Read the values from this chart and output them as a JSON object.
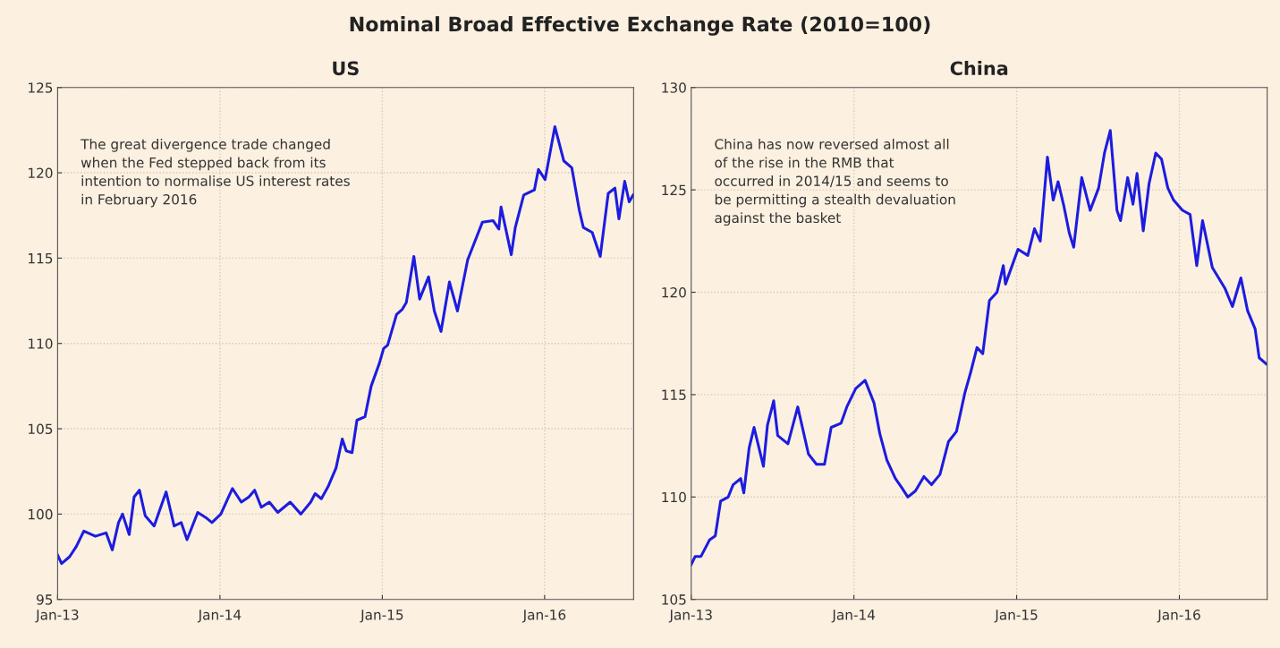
{
  "chart_data": [
    {
      "type": "line",
      "title": "US",
      "x": [
        "2013-01-01",
        "2013-01-10",
        "2013-01-28",
        "2013-02-12",
        "2013-03-01",
        "2013-03-27",
        "2013-04-20",
        "2013-05-04",
        "2013-05-18",
        "2013-05-27",
        "2013-06-11",
        "2013-06-22",
        "2013-07-04",
        "2013-07-17",
        "2013-08-06",
        "2013-09-02",
        "2013-09-20",
        "2013-10-06",
        "2013-10-19",
        "2013-11-12",
        "2013-11-30",
        "2013-12-14",
        "2014-01-03",
        "2014-01-29",
        "2014-02-18",
        "2014-03-07",
        "2014-03-20",
        "2014-04-04",
        "2014-04-22",
        "2014-05-11",
        "2014-06-08",
        "2014-07-02",
        "2014-07-24",
        "2014-08-03",
        "2014-08-17",
        "2014-09-01",
        "2014-09-19",
        "2014-10-03",
        "2014-10-12",
        "2014-10-25",
        "2014-11-05",
        "2014-11-23",
        "2014-12-07",
        "2014-12-25",
        "2015-01-04",
        "2015-01-13",
        "2015-02-02",
        "2015-02-15",
        "2015-02-24",
        "2015-03-13",
        "2015-03-26",
        "2015-04-15",
        "2015-04-28",
        "2015-05-13",
        "2015-06-01",
        "2015-06-19",
        "2015-07-12",
        "2015-08-14",
        "2015-09-07",
        "2015-09-20",
        "2015-09-25",
        "2015-10-18",
        "2015-10-27",
        "2015-11-15",
        "2015-12-09",
        "2015-12-18",
        "2016-01-02",
        "2016-01-24",
        "2016-02-13",
        "2016-03-02",
        "2016-03-19",
        "2016-03-28",
        "2016-04-17",
        "2016-05-05",
        "2016-05-23",
        "2016-06-07",
        "2016-06-16",
        "2016-06-29",
        "2016-07-09",
        "2016-07-18"
      ],
      "series": [
        {
          "color": "#1c1ce0",
          "values": [
            97.6,
            97.1,
            97.5,
            98.1,
            99.0,
            98.7,
            98.9,
            97.9,
            99.5,
            100.0,
            98.8,
            101.0,
            101.4,
            99.9,
            99.3,
            101.3,
            99.3,
            99.5,
            98.5,
            100.1,
            99.8,
            99.5,
            100.0,
            101.5,
            100.7,
            101.0,
            101.4,
            100.4,
            100.7,
            100.1,
            100.7,
            100.0,
            100.7,
            101.2,
            100.9,
            101.6,
            102.7,
            104.4,
            103.7,
            103.6,
            105.5,
            105.7,
            107.5,
            108.8,
            109.7,
            109.9,
            111.7,
            112.0,
            112.4,
            115.1,
            112.6,
            113.9,
            111.9,
            110.7,
            113.6,
            111.9,
            114.9,
            117.1,
            117.2,
            116.7,
            118.0,
            115.2,
            116.8,
            118.7,
            119.0,
            120.2,
            119.6,
            122.7,
            120.7,
            120.3,
            117.8,
            116.8,
            116.5,
            115.1,
            118.8,
            119.1,
            117.3,
            119.5,
            118.3,
            118.7
          ]
        }
      ],
      "xlim": [
        "2013-01-01",
        "2016-07-19"
      ],
      "xticks": [
        {
          "value": "2013-01-01",
          "label": "Jan-13"
        },
        {
          "value": "2014-01-01",
          "label": "Jan-14"
        },
        {
          "value": "2015-01-01",
          "label": "Jan-15"
        },
        {
          "value": "2016-01-01",
          "label": "Jan-16"
        }
      ],
      "ylim": [
        95,
        125
      ],
      "yticks": [
        95,
        100,
        105,
        110,
        115,
        120,
        125
      ],
      "grid": true,
      "line_style": "solid",
      "annotations": [
        "Nominal Broad Effective Exchange Rate (2010=100)",
        "The great divergence trade changed\nwhen the Fed stepped back from its\nintention to normalise US interest rates\nin February 2016"
      ]
    },
    {
      "type": "line",
      "title": "China",
      "x": [
        "2013-01-01",
        "2013-01-10",
        "2013-01-23",
        "2013-02-11",
        "2013-02-24",
        "2013-03-08",
        "2013-03-25",
        "2013-04-05",
        "2013-04-22",
        "2013-04-29",
        "2013-05-11",
        "2013-05-22",
        "2013-06-12",
        "2013-06-21",
        "2013-07-05",
        "2013-07-14",
        "2013-08-06",
        "2013-08-28",
        "2013-09-21",
        "2013-10-09",
        "2013-10-27",
        "2013-11-11",
        "2013-12-03",
        "2013-12-16",
        "2014-01-05",
        "2014-01-26",
        "2014-02-15",
        "2014-02-28",
        "2014-03-16",
        "2014-04-04",
        "2014-04-17",
        "2014-05-02",
        "2014-05-19",
        "2014-06-07",
        "2014-06-24",
        "2014-07-13",
        "2014-08-01",
        "2014-08-19",
        "2014-09-07",
        "2014-09-20",
        "2014-10-04",
        "2014-10-17",
        "2014-11-01",
        "2014-11-18",
        "2014-12-02",
        "2014-12-07",
        "2015-01-04",
        "2015-01-26",
        "2015-02-10",
        "2015-02-23",
        "2015-03-11",
        "2015-03-24",
        "2015-04-04",
        "2015-04-17",
        "2015-04-29",
        "2015-05-09",
        "2015-05-27",
        "2015-06-15",
        "2015-07-04",
        "2015-07-17",
        "2015-07-30",
        "2015-08-14",
        "2015-08-22",
        "2015-09-07",
        "2015-09-19",
        "2015-09-28",
        "2015-10-12",
        "2015-10-25",
        "2015-11-09",
        "2015-11-22",
        "2015-12-06",
        "2015-12-19",
        "2016-01-08",
        "2016-01-25",
        "2016-02-09",
        "2016-02-22",
        "2016-03-15",
        "2016-04-12",
        "2016-04-29",
        "2016-05-18",
        "2016-06-02",
        "2016-06-19",
        "2016-06-28",
        "2016-07-14"
      ],
      "series": [
        {
          "color": "#1c1ce0",
          "values": [
            106.7,
            107.1,
            107.1,
            107.9,
            108.1,
            109.8,
            110.0,
            110.6,
            110.9,
            110.2,
            112.4,
            113.4,
            111.5,
            113.5,
            114.7,
            113.0,
            112.6,
            114.4,
            112.1,
            111.6,
            111.6,
            113.4,
            113.6,
            114.4,
            115.3,
            115.7,
            114.6,
            113.1,
            111.8,
            110.9,
            110.5,
            110.0,
            110.3,
            111.0,
            110.6,
            111.1,
            112.7,
            113.2,
            115.1,
            116.1,
            117.3,
            117.0,
            119.6,
            120.0,
            121.3,
            120.4,
            122.1,
            121.8,
            123.1,
            122.5,
            126.6,
            124.5,
            125.4,
            124.2,
            122.9,
            122.2,
            125.6,
            124.0,
            125.1,
            126.8,
            127.9,
            124.0,
            123.5,
            125.6,
            124.3,
            125.8,
            123.0,
            125.3,
            126.8,
            126.5,
            125.1,
            124.5,
            124.0,
            123.8,
            121.3,
            123.5,
            121.2,
            120.2,
            119.3,
            120.7,
            119.1,
            118.2,
            116.8,
            116.5
          ]
        }
      ],
      "xlim": [
        "2013-01-01",
        "2016-07-16"
      ],
      "xticks": [
        {
          "value": "2013-01-01",
          "label": "Jan-13"
        },
        {
          "value": "2014-01-01",
          "label": "Jan-14"
        },
        {
          "value": "2015-01-01",
          "label": "Jan-15"
        },
        {
          "value": "2016-01-01",
          "label": "Jan-16"
        }
      ],
      "ylim": [
        105,
        130
      ],
      "yticks": [
        105,
        110,
        115,
        120,
        125,
        130
      ],
      "grid": true,
      "line_style": "solid",
      "annotations": [
        "China has now reversed almost all\nof the rise in the RMB that\noccurred in 2014/15 and seems to\nbe permitting a stealth devaluation\nagainst the basket"
      ]
    }
  ]
}
